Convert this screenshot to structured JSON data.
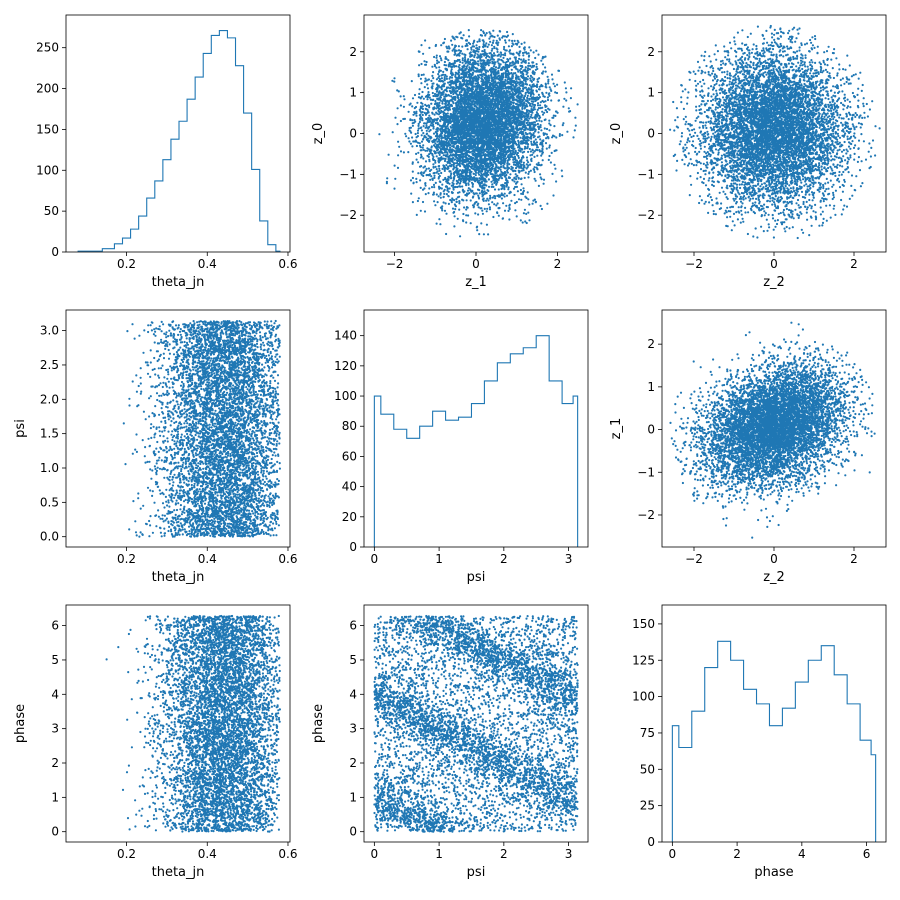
{
  "chart_data": [
    {
      "id": "p00",
      "type": "histogram",
      "xlabel": "theta_jn",
      "ylabel": "",
      "xlim": [
        0.05,
        0.605
      ],
      "ylim": [
        0,
        290
      ],
      "xticks": [
        0.2,
        0.4,
        0.6
      ],
      "xtick_labels": [
        "0.2",
        "0.4",
        "0.6"
      ],
      "yticks": [
        0,
        50,
        100,
        150,
        200,
        250
      ],
      "ytick_labels": [
        "0",
        "50",
        "100",
        "150",
        "200",
        "250"
      ],
      "color": "#1f77b4",
      "x": [
        0.08,
        0.12,
        0.16,
        0.18,
        0.2,
        0.22,
        0.24,
        0.26,
        0.28,
        0.3,
        0.32,
        0.34,
        0.36,
        0.38,
        0.4,
        0.42,
        0.44,
        0.46,
        0.48,
        0.5,
        0.52,
        0.54,
        0.56,
        0.58
      ],
      "values": [
        1,
        1,
        4,
        10,
        17,
        28,
        44,
        66,
        87,
        113,
        138,
        160,
        187,
        214,
        243,
        265,
        271,
        262,
        228,
        170,
        101,
        38,
        9,
        1
      ]
    },
    {
      "id": "p01",
      "type": "scatter",
      "xlabel": "z_1",
      "ylabel": "z_0",
      "xlim": [
        -2.75,
        2.75
      ],
      "ylim": [
        -2.9,
        2.9
      ],
      "xticks": [
        -2,
        0,
        2
      ],
      "xtick_labels": [
        "−2",
        "0",
        "2"
      ],
      "yticks": [
        -2,
        -1,
        0,
        1,
        2
      ],
      "ytick_labels": [
        "−2",
        "−1",
        "0",
        "1",
        "2"
      ],
      "color": "#1f77b4",
      "distribution": {
        "x_mean": 0.15,
        "x_sd": 0.75,
        "y_mean": 0.3,
        "y_sd": 0.95,
        "corr": 0.1,
        "radius": 2.6,
        "n": 7000
      }
    },
    {
      "id": "p02",
      "type": "scatter",
      "xlabel": "z_2",
      "ylabel": "z_0",
      "xlim": [
        -2.8,
        2.8
      ],
      "ylim": [
        -2.9,
        2.9
      ],
      "xticks": [
        -2,
        0,
        2
      ],
      "xtick_labels": [
        "−2",
        "0",
        "2"
      ],
      "yticks": [
        -2,
        -1,
        0,
        1,
        2
      ],
      "ytick_labels": [
        "−2",
        "−1",
        "0",
        "1",
        "2"
      ],
      "color": "#1f77b4",
      "distribution": {
        "x_mean": 0.0,
        "x_sd": 0.9,
        "y_mean": 0.1,
        "y_sd": 0.95,
        "corr": 0.0,
        "radius": 2.65,
        "n": 7000
      }
    },
    {
      "id": "p10",
      "type": "scatter",
      "xlabel": "theta_jn",
      "ylabel": "psi",
      "xlim": [
        0.05,
        0.605
      ],
      "ylim": [
        -0.15,
        3.3
      ],
      "xticks": [
        0.2,
        0.4,
        0.6
      ],
      "xtick_labels": [
        "0.2",
        "0.4",
        "0.6"
      ],
      "yticks": [
        0,
        0.5,
        1,
        1.5,
        2,
        2.5,
        3
      ],
      "ytick_labels": [
        "0.0",
        "0.5",
        "1.0",
        "1.5",
        "2.0",
        "2.5",
        "3.0"
      ],
      "color": "#1f77b4",
      "distribution": {
        "x_peak": 0.44,
        "x_min": 0.08,
        "x_max": 0.58,
        "y_range": [
          0,
          3.14
        ],
        "n": 6500
      }
    },
    {
      "id": "p11",
      "type": "histogram",
      "xlabel": "psi",
      "ylabel": "",
      "xlim": [
        -0.16,
        3.3
      ],
      "ylim": [
        0,
        157
      ],
      "xticks": [
        0,
        1,
        2,
        3
      ],
      "xtick_labels": [
        "0",
        "1",
        "2",
        "3"
      ],
      "yticks": [
        0,
        20,
        40,
        60,
        80,
        100,
        120,
        140
      ],
      "ytick_labels": [
        "0",
        "20",
        "40",
        "60",
        "80",
        "100",
        "120",
        "140"
      ],
      "color": "#1f77b4",
      "x": [
        0.0,
        0.2,
        0.4,
        0.6,
        0.8,
        1.0,
        1.2,
        1.4,
        1.6,
        1.8,
        2.0,
        2.2,
        2.4,
        2.6,
        2.8,
        3.0,
        3.14
      ],
      "values": [
        100,
        88,
        78,
        72,
        80,
        90,
        84,
        86,
        95,
        110,
        122,
        128,
        132,
        140,
        110,
        95,
        100
      ]
    },
    {
      "id": "p12",
      "type": "scatter",
      "xlabel": "z_2",
      "ylabel": "z_1",
      "xlim": [
        -2.8,
        2.8
      ],
      "ylim": [
        -2.75,
        2.8
      ],
      "xticks": [
        -2,
        0,
        2
      ],
      "xtick_labels": [
        "−2",
        "0",
        "2"
      ],
      "yticks": [
        -2,
        -1,
        0,
        1,
        2
      ],
      "ytick_labels": [
        "−2",
        "−1",
        "0",
        "1",
        "2"
      ],
      "color": "#1f77b4",
      "distribution": {
        "x_mean": 0.0,
        "x_sd": 0.9,
        "y_mean": 0.1,
        "y_sd": 0.7,
        "corr": 0.3,
        "radius": 2.6,
        "n": 7000
      }
    },
    {
      "id": "p20",
      "type": "scatter",
      "xlabel": "theta_jn",
      "ylabel": "phase",
      "xlim": [
        0.05,
        0.605
      ],
      "ylim": [
        -0.3,
        6.6
      ],
      "xticks": [
        0.2,
        0.4,
        0.6
      ],
      "xtick_labels": [
        "0.2",
        "0.4",
        "0.6"
      ],
      "yticks": [
        0,
        1,
        2,
        3,
        4,
        5,
        6
      ],
      "ytick_labels": [
        "0",
        "1",
        "2",
        "3",
        "4",
        "5",
        "6"
      ],
      "color": "#1f77b4",
      "distribution": {
        "x_peak": 0.44,
        "x_min": 0.08,
        "x_max": 0.58,
        "y_range": [
          0,
          6.28
        ],
        "n": 6500
      }
    },
    {
      "id": "p21",
      "type": "scatter",
      "xlabel": "psi",
      "ylabel": "phase",
      "xlim": [
        -0.16,
        3.3
      ],
      "ylim": [
        -0.3,
        6.6
      ],
      "xticks": [
        0,
        1,
        2,
        3
      ],
      "xtick_labels": [
        "0",
        "1",
        "2",
        "3"
      ],
      "yticks": [
        0,
        1,
        2,
        3,
        4,
        5,
        6
      ],
      "ytick_labels": [
        "0",
        "1",
        "2",
        "3",
        "4",
        "5",
        "6"
      ],
      "color": "#1f77b4",
      "distribution": {
        "bands": [
          {
            "intercept": 4.0,
            "slope": -1.0
          },
          {
            "intercept": 7.0,
            "slope": -1.0
          },
          {
            "intercept": 1.0,
            "slope": -1.0
          }
        ],
        "n": 6500
      }
    },
    {
      "id": "p22",
      "type": "histogram",
      "xlabel": "phase",
      "ylabel": "",
      "xlim": [
        -0.32,
        6.6
      ],
      "ylim": [
        0,
        163
      ],
      "xticks": [
        0,
        2,
        4,
        6
      ],
      "xtick_labels": [
        "0",
        "2",
        "4",
        "6"
      ],
      "yticks": [
        0,
        25,
        50,
        75,
        100,
        125,
        150
      ],
      "ytick_labels": [
        "0",
        "25",
        "50",
        "75",
        "100",
        "125",
        "150"
      ],
      "color": "#1f77b4",
      "x": [
        0.0,
        0.4,
        0.8,
        1.2,
        1.6,
        2.0,
        2.4,
        2.8,
        3.2,
        3.6,
        4.0,
        4.4,
        4.8,
        5.2,
        5.6,
        6.0,
        6.28
      ],
      "values": [
        80,
        65,
        90,
        120,
        138,
        125,
        105,
        95,
        80,
        92,
        110,
        125,
        135,
        115,
        95,
        70,
        60
      ]
    }
  ]
}
